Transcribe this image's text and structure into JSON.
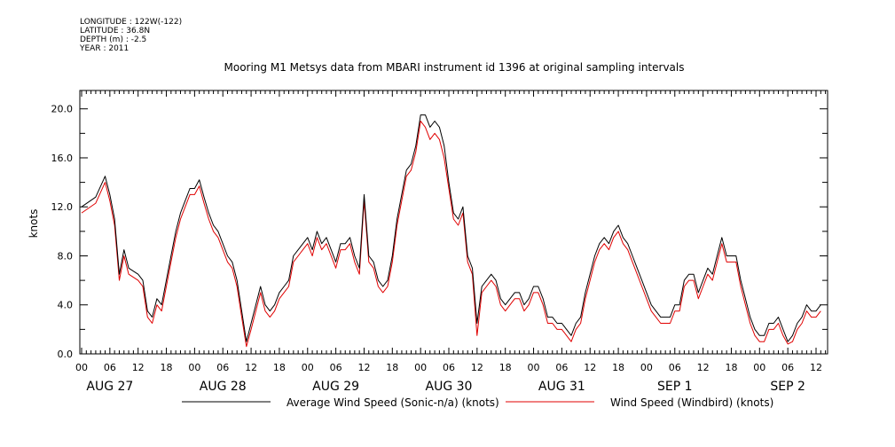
{
  "header": {
    "meta_lines": [
      "LONGITUDE : 122W(-122)",
      "LATITUDE : 36.8N",
      "DEPTH (m) : -2.5",
      "YEAR : 2011"
    ]
  },
  "chart_data": {
    "type": "line",
    "title": "Mooring M1 Metsys data from MBARI instrument id 1396 at original sampling intervals",
    "ylabel": "knots",
    "xlabel": "",
    "ylim": [
      0,
      21.5
    ],
    "xlim_hours": [
      0,
      158
    ],
    "y_ticks": [
      0.0,
      4.0,
      8.0,
      12.0,
      16.0,
      20.0
    ],
    "y_tick_labels": [
      "0.0",
      "4.0",
      "8.0",
      "12.0",
      "16.0",
      "20.0"
    ],
    "x_hour_tick_labels": [
      "00",
      "06",
      "12",
      "18",
      "00",
      "06",
      "12",
      "18",
      "00",
      "06",
      "12",
      "18",
      "00",
      "06",
      "12",
      "18",
      "00",
      "06",
      "12",
      "18",
      "00",
      "06",
      "12",
      "18",
      "00",
      "06",
      "12"
    ],
    "x_day_labels": [
      "AUG 27",
      "AUG 28",
      "AUG 29",
      "AUG 30",
      "AUG 31",
      "SEP  1",
      "SEP  2"
    ],
    "grid": false,
    "legend_position": "bottom",
    "series": [
      {
        "name": "Average Wind Speed (Sonic-n/a) (knots)",
        "color": "#000000",
        "points": [
          [
            0,
            12
          ],
          [
            3,
            12.8
          ],
          [
            5,
            14.5
          ],
          [
            6,
            13
          ],
          [
            7,
            11
          ],
          [
            8,
            6.5
          ],
          [
            9,
            8.5
          ],
          [
            10,
            7
          ],
          [
            12,
            6.5
          ],
          [
            13,
            6
          ],
          [
            14,
            3.5
          ],
          [
            15,
            3
          ],
          [
            16,
            4.5
          ],
          [
            17,
            4
          ],
          [
            18,
            6
          ],
          [
            19,
            8
          ],
          [
            20,
            10
          ],
          [
            21,
            11.5
          ],
          [
            22,
            12.5
          ],
          [
            23,
            13.5
          ],
          [
            24,
            13.5
          ],
          [
            25,
            14.2
          ],
          [
            26,
            12.8
          ],
          [
            27,
            11.5
          ],
          [
            28,
            10.5
          ],
          [
            29,
            10
          ],
          [
            30,
            9
          ],
          [
            31,
            8
          ],
          [
            32,
            7.5
          ],
          [
            33,
            6
          ],
          [
            34,
            3.5
          ],
          [
            35,
            1
          ],
          [
            36,
            2.5
          ],
          [
            37,
            4
          ],
          [
            38,
            5.5
          ],
          [
            39,
            4
          ],
          [
            40,
            3.5
          ],
          [
            41,
            4
          ],
          [
            42,
            5
          ],
          [
            43,
            5.5
          ],
          [
            44,
            6
          ],
          [
            45,
            8
          ],
          [
            46,
            8.5
          ],
          [
            47,
            9
          ],
          [
            48,
            9.5
          ],
          [
            49,
            8.5
          ],
          [
            50,
            10
          ],
          [
            51,
            9
          ],
          [
            52,
            9.5
          ],
          [
            53,
            8.5
          ],
          [
            54,
            7.5
          ],
          [
            55,
            9
          ],
          [
            56,
            9
          ],
          [
            57,
            9.5
          ],
          [
            58,
            8
          ],
          [
            59,
            7
          ],
          [
            60,
            13
          ],
          [
            61,
            8
          ],
          [
            62,
            7.5
          ],
          [
            63,
            6
          ],
          [
            64,
            5.5
          ],
          [
            65,
            6
          ],
          [
            66,
            8
          ],
          [
            67,
            11
          ],
          [
            68,
            13
          ],
          [
            69,
            15
          ],
          [
            70,
            15.5
          ],
          [
            71,
            17
          ],
          [
            72,
            19.5
          ],
          [
            73,
            19.5
          ],
          [
            74,
            18.5
          ],
          [
            75,
            19
          ],
          [
            76,
            18.5
          ],
          [
            77,
            17
          ],
          [
            78,
            14
          ],
          [
            79,
            11.5
          ],
          [
            80,
            11
          ],
          [
            81,
            12
          ],
          [
            82,
            8
          ],
          [
            83,
            7
          ],
          [
            84,
            2.5
          ],
          [
            85,
            5.5
          ],
          [
            86,
            6
          ],
          [
            87,
            6.5
          ],
          [
            88,
            6
          ],
          [
            89,
            4.5
          ],
          [
            90,
            4
          ],
          [
            91,
            4.5
          ],
          [
            92,
            5
          ],
          [
            93,
            5
          ],
          [
            94,
            4
          ],
          [
            95,
            4.5
          ],
          [
            96,
            5.5
          ],
          [
            97,
            5.5
          ],
          [
            98,
            4.5
          ],
          [
            99,
            3
          ],
          [
            100,
            3
          ],
          [
            101,
            2.5
          ],
          [
            102,
            2.5
          ],
          [
            103,
            2
          ],
          [
            104,
            1.5
          ],
          [
            105,
            2.5
          ],
          [
            106,
            3
          ],
          [
            107,
            5
          ],
          [
            108,
            6.5
          ],
          [
            109,
            8
          ],
          [
            110,
            9
          ],
          [
            111,
            9.5
          ],
          [
            112,
            9
          ],
          [
            113,
            10
          ],
          [
            114,
            10.5
          ],
          [
            115,
            9.5
          ],
          [
            116,
            9
          ],
          [
            117,
            8
          ],
          [
            118,
            7
          ],
          [
            119,
            6
          ],
          [
            120,
            5
          ],
          [
            121,
            4
          ],
          [
            122,
            3.5
          ],
          [
            123,
            3
          ],
          [
            124,
            3
          ],
          [
            125,
            3
          ],
          [
            126,
            4
          ],
          [
            127,
            4
          ],
          [
            128,
            6
          ],
          [
            129,
            6.5
          ],
          [
            130,
            6.5
          ],
          [
            131,
            5
          ],
          [
            132,
            6
          ],
          [
            133,
            7
          ],
          [
            134,
            6.5
          ],
          [
            135,
            8
          ],
          [
            136,
            9.5
          ],
          [
            137,
            8
          ],
          [
            138,
            8
          ],
          [
            139,
            8
          ],
          [
            140,
            6
          ],
          [
            141,
            4.5
          ],
          [
            142,
            3
          ],
          [
            143,
            2
          ],
          [
            144,
            1.5
          ],
          [
            145,
            1.5
          ],
          [
            146,
            2.5
          ],
          [
            147,
            2.5
          ],
          [
            148,
            3
          ],
          [
            149,
            2
          ],
          [
            150,
            1
          ],
          [
            151,
            1.5
          ],
          [
            152,
            2.5
          ],
          [
            153,
            3
          ],
          [
            154,
            4
          ],
          [
            155,
            3.5
          ],
          [
            156,
            3.5
          ],
          [
            157,
            4
          ]
        ]
      },
      {
        "name": "Wind Speed (Windbird) (knots)",
        "color": "#e00000",
        "points": [
          [
            0,
            11.5
          ],
          [
            3,
            12.3
          ],
          [
            5,
            14
          ],
          [
            6,
            12.5
          ],
          [
            7,
            10.5
          ],
          [
            8,
            6
          ],
          [
            9,
            8
          ],
          [
            10,
            6.5
          ],
          [
            12,
            6
          ],
          [
            13,
            5.5
          ],
          [
            14,
            3
          ],
          [
            15,
            2.5
          ],
          [
            16,
            4
          ],
          [
            17,
            3.5
          ],
          [
            18,
            5.5
          ],
          [
            19,
            7.5
          ],
          [
            20,
            9.5
          ],
          [
            21,
            11
          ],
          [
            22,
            12
          ],
          [
            23,
            13
          ],
          [
            24,
            13
          ],
          [
            25,
            13.7
          ],
          [
            26,
            12.3
          ],
          [
            27,
            11
          ],
          [
            28,
            10
          ],
          [
            29,
            9.5
          ],
          [
            30,
            8.5
          ],
          [
            31,
            7.5
          ],
          [
            32,
            7
          ],
          [
            33,
            5.5
          ],
          [
            34,
            3
          ],
          [
            35,
            0.6
          ],
          [
            36,
            2
          ],
          [
            37,
            3.5
          ],
          [
            38,
            5
          ],
          [
            39,
            3.5
          ],
          [
            40,
            3
          ],
          [
            41,
            3.5
          ],
          [
            42,
            4.5
          ],
          [
            43,
            5
          ],
          [
            44,
            5.5
          ],
          [
            45,
            7.5
          ],
          [
            46,
            8
          ],
          [
            47,
            8.5
          ],
          [
            48,
            9
          ],
          [
            49,
            8
          ],
          [
            50,
            9.5
          ],
          [
            51,
            8.5
          ],
          [
            52,
            9
          ],
          [
            53,
            8
          ],
          [
            54,
            7
          ],
          [
            55,
            8.5
          ],
          [
            56,
            8.5
          ],
          [
            57,
            9
          ],
          [
            58,
            7.5
          ],
          [
            59,
            6.5
          ],
          [
            60,
            12.5
          ],
          [
            61,
            7.5
          ],
          [
            62,
            7
          ],
          [
            63,
            5.5
          ],
          [
            64,
            5
          ],
          [
            65,
            5.5
          ],
          [
            66,
            7.5
          ],
          [
            67,
            10.5
          ],
          [
            68,
            12.5
          ],
          [
            69,
            14.5
          ],
          [
            70,
            15
          ],
          [
            71,
            16.5
          ],
          [
            72,
            19
          ],
          [
            73,
            18.5
          ],
          [
            74,
            17.5
          ],
          [
            75,
            18
          ],
          [
            76,
            17.5
          ],
          [
            77,
            16
          ],
          [
            78,
            13.5
          ],
          [
            79,
            11
          ],
          [
            80,
            10.5
          ],
          [
            81,
            11.5
          ],
          [
            82,
            7.5
          ],
          [
            83,
            6.5
          ],
          [
            84,
            1.5
          ],
          [
            85,
            5
          ],
          [
            86,
            5.5
          ],
          [
            87,
            6
          ],
          [
            88,
            5.5
          ],
          [
            89,
            4
          ],
          [
            90,
            3.5
          ],
          [
            91,
            4
          ],
          [
            92,
            4.5
          ],
          [
            93,
            4.5
          ],
          [
            94,
            3.5
          ],
          [
            95,
            4
          ],
          [
            96,
            5
          ],
          [
            97,
            5
          ],
          [
            98,
            4
          ],
          [
            99,
            2.5
          ],
          [
            100,
            2.5
          ],
          [
            101,
            2
          ],
          [
            102,
            2
          ],
          [
            103,
            1.5
          ],
          [
            104,
            1
          ],
          [
            105,
            2
          ],
          [
            106,
            2.5
          ],
          [
            107,
            4.5
          ],
          [
            108,
            6
          ],
          [
            109,
            7.5
          ],
          [
            110,
            8.5
          ],
          [
            111,
            9
          ],
          [
            112,
            8.5
          ],
          [
            113,
            9.5
          ],
          [
            114,
            10
          ],
          [
            115,
            9
          ],
          [
            116,
            8.5
          ],
          [
            117,
            7.5
          ],
          [
            118,
            6.5
          ],
          [
            119,
            5.5
          ],
          [
            120,
            4.5
          ],
          [
            121,
            3.5
          ],
          [
            122,
            3
          ],
          [
            123,
            2.5
          ],
          [
            124,
            2.5
          ],
          [
            125,
            2.5
          ],
          [
            126,
            3.5
          ],
          [
            127,
            3.5
          ],
          [
            128,
            5.5
          ],
          [
            129,
            6
          ],
          [
            130,
            6
          ],
          [
            131,
            4.5
          ],
          [
            132,
            5.5
          ],
          [
            133,
            6.5
          ],
          [
            134,
            6
          ],
          [
            135,
            7.5
          ],
          [
            136,
            9
          ],
          [
            137,
            7.5
          ],
          [
            138,
            7.5
          ],
          [
            139,
            7.5
          ],
          [
            140,
            5.5
          ],
          [
            141,
            4
          ],
          [
            142,
            2.5
          ],
          [
            143,
            1.5
          ],
          [
            144,
            1
          ],
          [
            145,
            1
          ],
          [
            146,
            2
          ],
          [
            147,
            2
          ],
          [
            148,
            2.5
          ],
          [
            149,
            1.5
          ],
          [
            150,
            0.8
          ],
          [
            151,
            1
          ],
          [
            152,
            2
          ],
          [
            153,
            2.5
          ],
          [
            154,
            3.5
          ],
          [
            155,
            3
          ],
          [
            156,
            3
          ],
          [
            157,
            3.5
          ]
        ]
      }
    ]
  }
}
